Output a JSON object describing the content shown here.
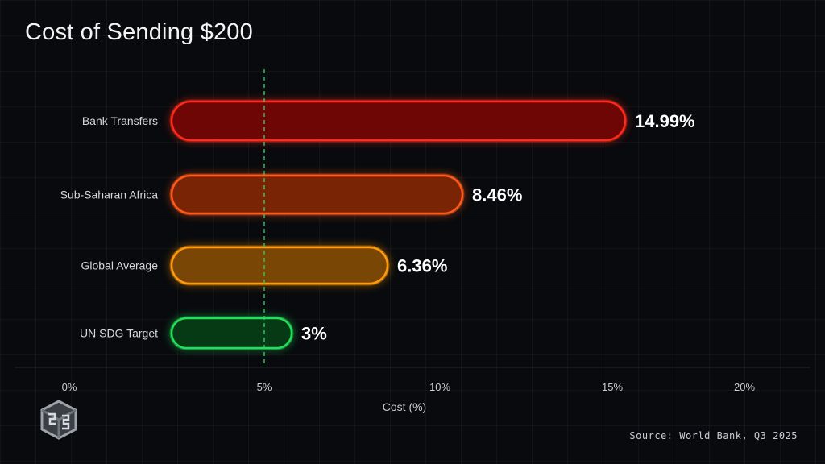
{
  "chart_data": {
    "type": "bar",
    "orientation": "horizontal",
    "title": "Cost of Sending $200",
    "xlabel": "Cost (%)",
    "ylabel": "",
    "categories": [
      "Bank Transfers",
      "Sub-Saharan Africa",
      "Global Average",
      "UN SDG Target"
    ],
    "values": [
      14.99,
      8.46,
      6.36,
      3
    ],
    "value_labels": [
      "14.99%",
      "8.46%",
      "6.36%",
      "3%"
    ],
    "bar_colors": [
      "#ff2a1a",
      "#ff5a1a",
      "#ff9a0a",
      "#22e05a"
    ],
    "bar_fills": [
      "#6e0606",
      "#7a2406",
      "#7a4606",
      "#063a14"
    ],
    "xticks": [
      "0%",
      "5%",
      "10%",
      "15%",
      "20%"
    ],
    "reference_line": {
      "value": 5,
      "color": "#2ecf6a",
      "style": "dashed"
    },
    "grid": true
  },
  "source": "Source: World Bank, Q3 2025"
}
